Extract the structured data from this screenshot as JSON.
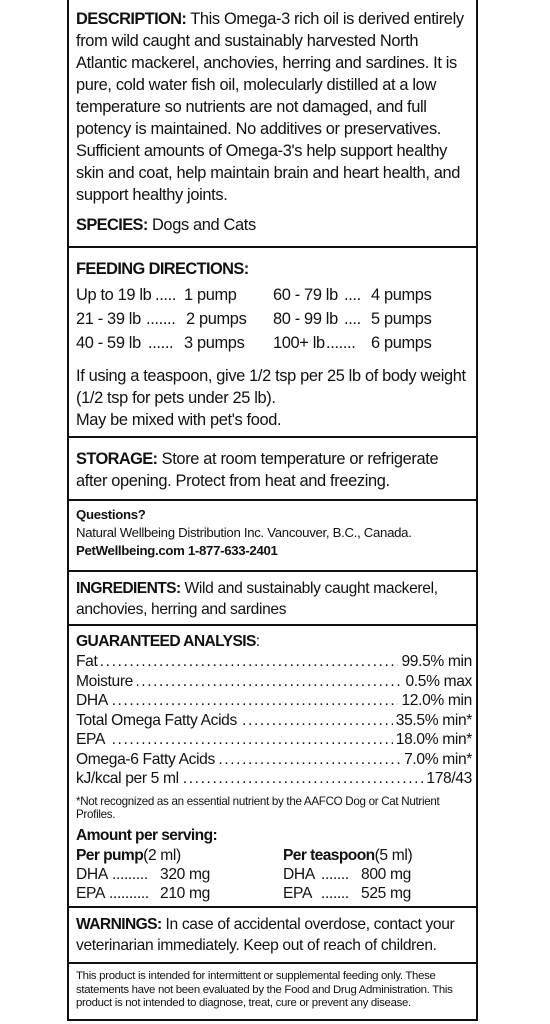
{
  "description": {
    "heading": "DESCRIPTION:",
    "text": "This Omega-3 rich oil is derived entirely from wild caught and sustainably harvested North Atlantic mackerel, anchovies, herring and sardines. It is pure, cold water fish oil, molecularly distilled at a low temperature so nutrients are not damaged, and full potency is maintained. No additives or preservatives. Sufficient amounts of Omega-3's help support healthy skin and coat, help maintain brain and heart health, and support healthy joints."
  },
  "species": {
    "heading": "SPECIES:",
    "text": "Dogs and Cats"
  },
  "feeding": {
    "heading": "FEEDING DIRECTIONS:",
    "left": [
      {
        "weight": "Up to 19 lb",
        "dots": ".....",
        "dose": "1 pump"
      },
      {
        "weight": "21 - 39 lb",
        "dots": ".......",
        "dose": "2 pumps"
      },
      {
        "weight": "40 - 59 lb",
        "dots": "......",
        "dose": "3 pumps"
      }
    ],
    "right": [
      {
        "weight": "60 - 79 lb",
        "dots": "....",
        "dose": "4 pumps"
      },
      {
        "weight": "80 - 99 lb",
        "dots": "....",
        "dose": "5 pumps"
      },
      {
        "weight": "100+ lb",
        "dots": ".......",
        "dose": "6 pumps"
      }
    ],
    "note1": "If using a teaspoon, give 1/2 tsp per 25 lb of body weight (1/2 tsp for pets under 25 lb).",
    "note2": "May be mixed with pet's food."
  },
  "storage": {
    "heading": "STORAGE:",
    "text": "Store at room temperature or refrigerate after opening. Protect from heat and freezing."
  },
  "questions": {
    "heading": "Questions?",
    "company": "Natural Wellbeing Distribution Inc. Vancouver, B.C., Canada.",
    "contact": "PetWellbeing.com 1-877-633-2401"
  },
  "ingredients": {
    "heading": "INGREDIENTS:",
    "text": "Wild and sustainably caught mackerel, anchovies, herring and sardines"
  },
  "analysis": {
    "heading": "GUARANTEED ANALYSIS",
    "colon": ":",
    "rows": [
      {
        "name": "Fat",
        "value": "99.5% min"
      },
      {
        "name": "Moisture",
        "value": "0.5% max"
      },
      {
        "name": "DHA",
        "value": "12.0% min"
      },
      {
        "name": "Total Omega Fatty Acids",
        "value": "35.5% min*"
      },
      {
        "name": "EPA",
        "value": "18.0% min*"
      },
      {
        "name": "Omega-6 Fatty Acids",
        "value": "7.0% min*"
      },
      {
        "name": "kJ/kcal per 5 ml",
        "value": "178/43"
      }
    ],
    "dot_leader": "...................................................................................................................",
    "footnote": "*Not recognized as an essential nutrient by the AAFCO Dog or Cat Nutrient Profiles."
  },
  "serving": {
    "heading": "Amount per serving:",
    "pump_heading": "Per pump",
    "pump_unit": "(2 ml)",
    "pump_rows": [
      {
        "name": "DHA",
        "dots": ".........",
        "value": "320 mg"
      },
      {
        "name": "EPA",
        "dots": "..........",
        "value": "210 mg"
      }
    ],
    "tsp_heading": "Per teaspoon",
    "tsp_unit": "(5 ml)",
    "tsp_rows": [
      {
        "name": "DHA",
        "dots": ".......",
        "value": "800 mg"
      },
      {
        "name": "EPA",
        "dots": ".......",
        "value": "525 mg"
      }
    ]
  },
  "warnings": {
    "heading": "WARNINGS:",
    "text": "In case of accidental overdose, contact your veterinarian immediately. Keep out of reach of children."
  },
  "disclaimer": "This product is intended for intermittent or supplemental feeding only. These statements have not been evaluated by the Food and Drug Administration. This product is not intended to diagnose, treat, cure or prevent any disease."
}
